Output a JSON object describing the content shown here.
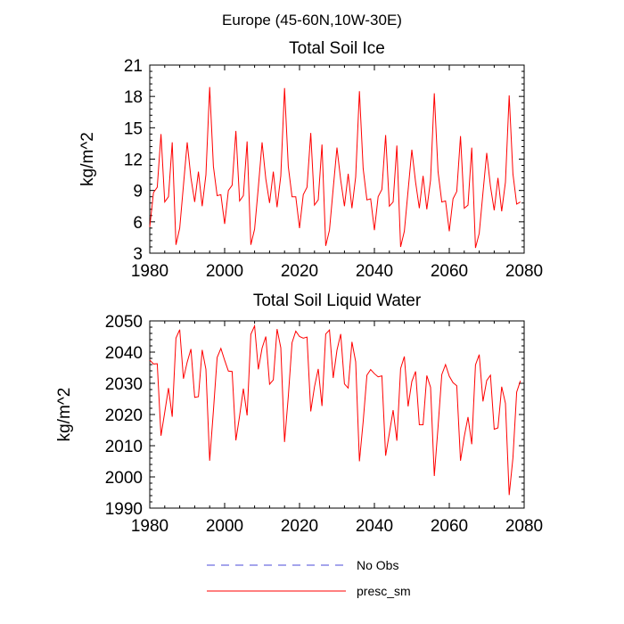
{
  "figure_title": "Europe (45-60N,10W-30E)",
  "legend": [
    {
      "label": "No Obs",
      "color": "#4a4ad8",
      "dash": true
    },
    {
      "label": "presc_sm",
      "color": "#ff0000",
      "dash": false
    }
  ],
  "chart_data": [
    {
      "type": "line",
      "title": "Total Soil Ice",
      "xlabel": "",
      "ylabel": "kg/m^2",
      "xlim": [
        1980,
        2080
      ],
      "ylim": [
        3,
        21
      ],
      "xticks": [
        1980,
        2000,
        2020,
        2040,
        2060,
        2080
      ],
      "yticks": [
        3,
        6,
        9,
        12,
        15,
        18,
        21
      ],
      "grid": false,
      "series": [
        {
          "name": "presc_sm",
          "color": "#ff0000",
          "x": [
            1980,
            1981,
            1982,
            1983,
            1984,
            1985,
            1986,
            1987,
            1988,
            1989,
            1990,
            1991,
            1992,
            1993,
            1994,
            1995,
            1996,
            1997,
            1998,
            1999,
            2000,
            2001,
            2002,
            2003,
            2004,
            2005,
            2006,
            2007,
            2008,
            2009,
            2010,
            2011,
            2012,
            2013,
            2014,
            2015,
            2016,
            2017,
            2018,
            2019,
            2020,
            2021,
            2022,
            2023,
            2024,
            2025,
            2026,
            2027,
            2028,
            2029,
            2030,
            2031,
            2032,
            2033,
            2034,
            2035,
            2036,
            2037,
            2038,
            2039,
            2040,
            2041,
            2042,
            2043,
            2044,
            2045,
            2046,
            2047,
            2048,
            2049,
            2050,
            2051,
            2052,
            2053,
            2054,
            2055,
            2056,
            2057,
            2058,
            2059,
            2060,
            2061,
            2062,
            2063,
            2064,
            2065,
            2066,
            2067,
            2068,
            2069,
            2070,
            2071,
            2072,
            2073,
            2074,
            2075,
            2076,
            2077,
            2078,
            2079
          ],
          "values": [
            5.5,
            8.8,
            9.3,
            14.4,
            7.9,
            8.4,
            13.6,
            3.8,
            5.4,
            9.5,
            13.6,
            10.2,
            7.9,
            10.8,
            7.5,
            10.5,
            18.9,
            11.3,
            8.5,
            8.6,
            5.8,
            9.0,
            9.5,
            14.7,
            8.0,
            8.5,
            13.7,
            3.8,
            5.3,
            9.3,
            13.6,
            10.1,
            7.8,
            10.8,
            7.4,
            10.4,
            18.8,
            11.3,
            8.4,
            8.4,
            5.4,
            8.6,
            9.3,
            14.5,
            7.6,
            8.1,
            13.4,
            3.7,
            5.2,
            9.2,
            13.1,
            10.0,
            7.5,
            10.6,
            7.3,
            10.3,
            18.5,
            11.1,
            8.1,
            8.2,
            5.2,
            8.4,
            9.1,
            14.3,
            7.5,
            7.9,
            13.3,
            3.6,
            5.1,
            9.0,
            12.9,
            9.8,
            7.3,
            10.4,
            7.2,
            10.0,
            18.3,
            10.8,
            7.9,
            8.0,
            5.1,
            8.2,
            8.9,
            14.2,
            7.3,
            7.6,
            13.1,
            3.5,
            4.9,
            8.8,
            12.6,
            9.4,
            7.1,
            10.2,
            7.0,
            9.8,
            18.1,
            10.6,
            7.7,
            7.9
          ]
        }
      ]
    },
    {
      "type": "line",
      "title": "Total Soil Liquid Water",
      "xlabel": "",
      "ylabel": "kg/m^2",
      "xlim": [
        1980,
        2080
      ],
      "ylim": [
        1990,
        2050
      ],
      "xticks": [
        1980,
        2000,
        2020,
        2040,
        2060,
        2080
      ],
      "yticks": [
        1990,
        2000,
        2010,
        2020,
        2030,
        2040,
        2050
      ],
      "grid": false,
      "series": [
        {
          "name": "presc_sm",
          "color": "#ff0000",
          "x": [
            1980,
            1981,
            1982,
            1983,
            1984,
            1985,
            1986,
            1987,
            1988,
            1989,
            1990,
            1991,
            1992,
            1993,
            1994,
            1995,
            1996,
            1997,
            1998,
            1999,
            2000,
            2001,
            2002,
            2003,
            2004,
            2005,
            2006,
            2007,
            2008,
            2009,
            2010,
            2011,
            2012,
            2013,
            2014,
            2015,
            2016,
            2017,
            2018,
            2019,
            2020,
            2021,
            2022,
            2023,
            2024,
            2025,
            2026,
            2027,
            2028,
            2029,
            2030,
            2031,
            2032,
            2033,
            2034,
            2035,
            2036,
            2037,
            2038,
            2039,
            2040,
            2041,
            2042,
            2043,
            2044,
            2045,
            2046,
            2047,
            2048,
            2049,
            2050,
            2051,
            2052,
            2053,
            2054,
            2055,
            2056,
            2057,
            2058,
            2059,
            2060,
            2061,
            2062,
            2063,
            2064,
            2065,
            2066,
            2067,
            2068,
            2069,
            2070,
            2071,
            2072,
            2073,
            2074,
            2075,
            2076,
            2077,
            2078,
            2079
          ],
          "values": [
            2037.5,
            2036.2,
            2036.3,
            2013.2,
            2020.7,
            2028.5,
            2019.3,
            2044.5,
            2047.2,
            2031.5,
            2036.8,
            2041.0,
            2025.5,
            2025.7,
            2040.7,
            2034.5,
            2005.2,
            2021.2,
            2038.3,
            2041.2,
            2037.4,
            2033.9,
            2033.8,
            2011.7,
            2019.6,
            2028.3,
            2019.7,
            2045.7,
            2048.4,
            2034.5,
            2041.3,
            2045.0,
            2029.7,
            2031.1,
            2047.4,
            2041.4,
            2011.2,
            2025.7,
            2043.0,
            2046.7,
            2045.0,
            2044.5,
            2044.8,
            2021.0,
            2028.9,
            2034.6,
            2022.7,
            2045.8,
            2047.1,
            2031.7,
            2040.6,
            2045.8,
            2029.8,
            2028.5,
            2043.3,
            2036.9,
            2005.0,
            2017.7,
            2032.6,
            2034.4,
            2033.1,
            2032.1,
            2032.4,
            2006.8,
            2014.0,
            2021.4,
            2011.6,
            2034.7,
            2038.6,
            2022.6,
            2030.6,
            2033.8,
            2016.7,
            2016.7,
            2032.5,
            2028.7,
            2000.3,
            2016.0,
            2032.8,
            2036.0,
            2032.3,
            2030.2,
            2029.2,
            2005.2,
            2012.9,
            2019.2,
            2010.5,
            2035.9,
            2039.2,
            2024.2,
            2030.9,
            2032.6,
            2015.3,
            2015.7,
            2028.9,
            2023.6,
            1994.2,
            2006.1,
            2027.2,
            2030.8
          ]
        }
      ]
    }
  ]
}
